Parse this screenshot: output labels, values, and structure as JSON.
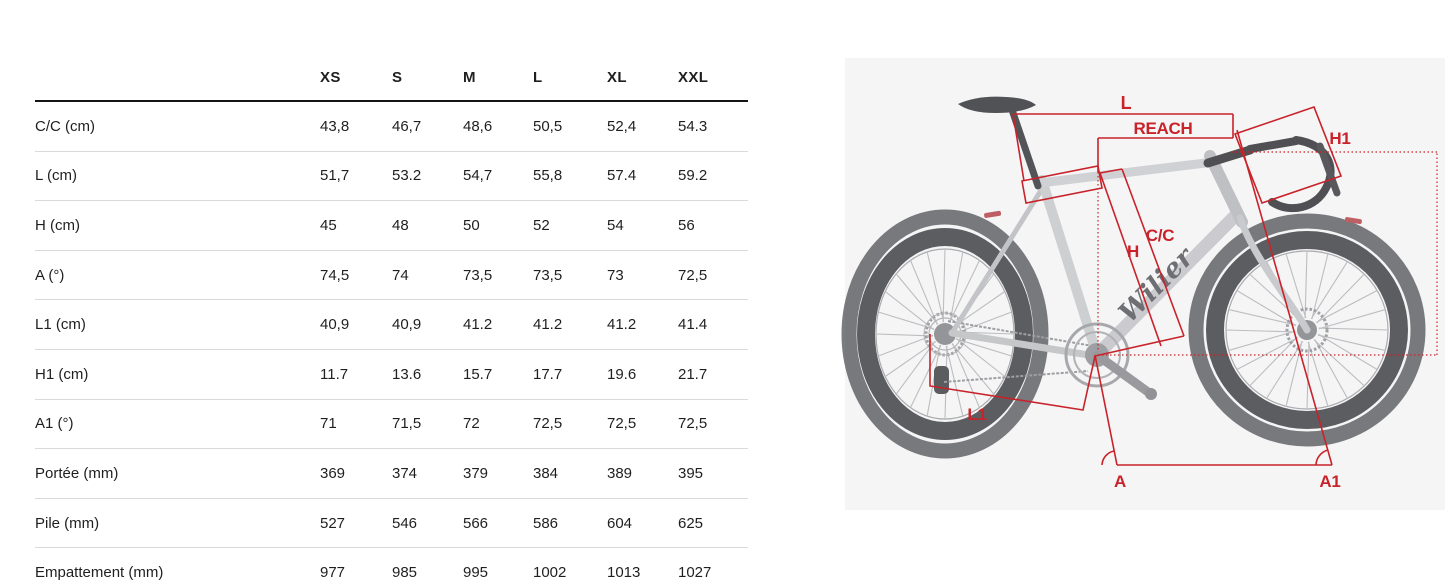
{
  "table": {
    "size_headers": [
      "XS",
      "S",
      "M",
      "L",
      "XL",
      "XXL"
    ],
    "rows": [
      {
        "label": "C/C (cm)",
        "values": [
          "43,8",
          "46,7",
          "48,6",
          "50,5",
          "52,4",
          "54.3"
        ]
      },
      {
        "label": "L (cm)",
        "values": [
          "51,7",
          "53.2",
          "54,7",
          "55,8",
          "57.4",
          "59.2"
        ]
      },
      {
        "label": "H (cm)",
        "values": [
          "45",
          "48",
          "50",
          "52",
          "54",
          "56"
        ]
      },
      {
        "label": "A (°)",
        "values": [
          "74,5",
          "74",
          "73,5",
          "73,5",
          "73",
          "72,5"
        ]
      },
      {
        "label": "L1 (cm)",
        "values": [
          "40,9",
          "40,9",
          "41.2",
          "41.2",
          "41.2",
          "41.4"
        ]
      },
      {
        "label": "H1 (cm)",
        "values": [
          "11.7",
          "13.6",
          "15.7",
          "17.7",
          "19.6",
          "21.7"
        ]
      },
      {
        "label": "A1 (°)",
        "values": [
          "71",
          "71,5",
          "72",
          "72,5",
          "72,5",
          "72,5"
        ]
      },
      {
        "label": "Portée (mm)",
        "values": [
          "369",
          "374",
          "379",
          "384",
          "389",
          "395"
        ]
      },
      {
        "label": "Pile (mm)",
        "values": [
          "527",
          "546",
          "566",
          "586",
          "604",
          "625"
        ]
      },
      {
        "label": "Empattement (mm)",
        "values": [
          "977",
          "985",
          "995",
          "1002",
          "1013",
          "1027"
        ]
      }
    ]
  },
  "diagram": {
    "accent_color": "#c8232a",
    "brand_logo_text": "Wilier",
    "annotations": {
      "top_tube_length": "L",
      "reach": "REACH",
      "head_tube_length": "H1",
      "frame_height": "H",
      "seat_tube_center_to_center": "C/C",
      "chainstay_length": "L1",
      "seat_tube_angle": "A",
      "head_tube_angle": "A1"
    }
  }
}
